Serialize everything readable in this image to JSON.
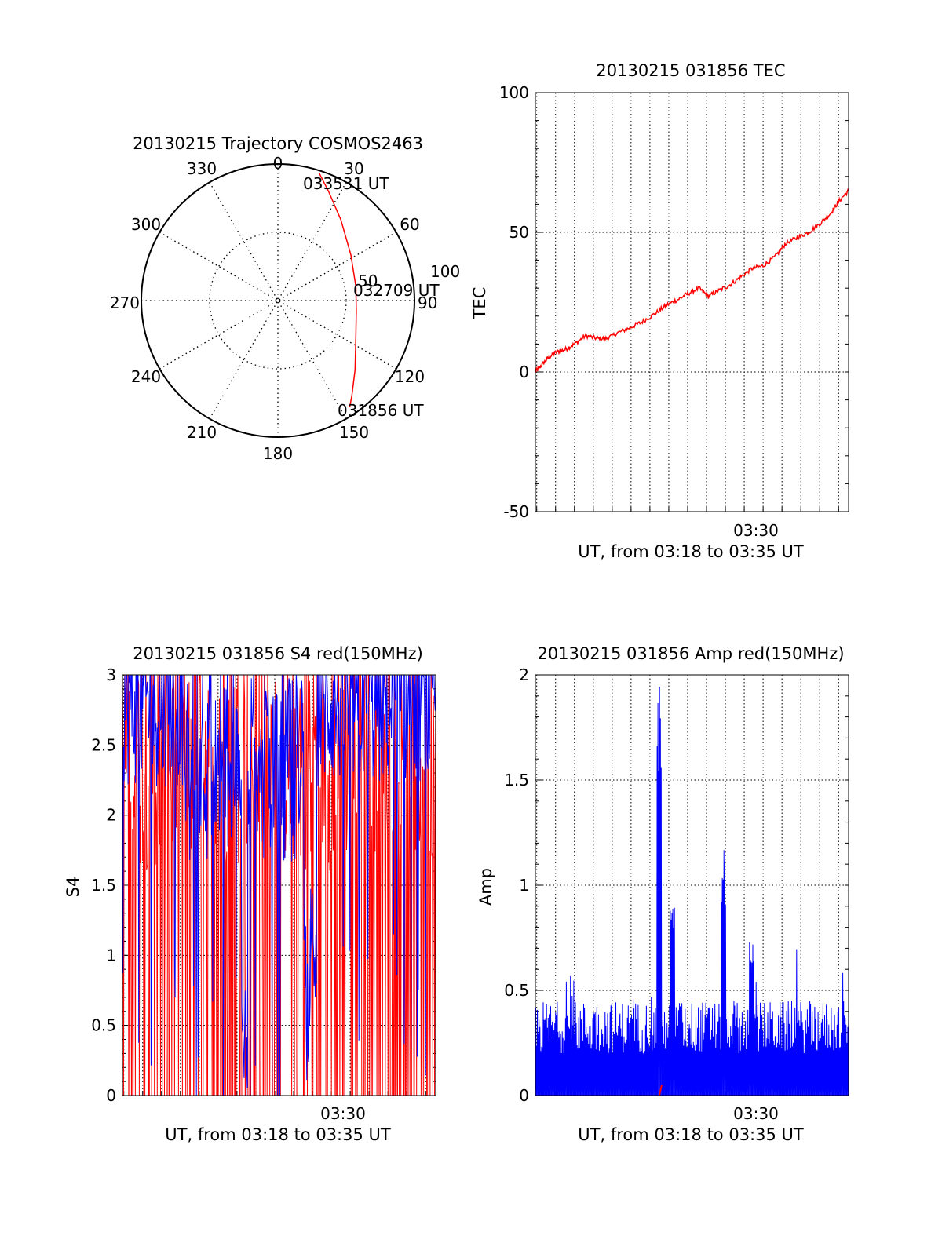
{
  "figure": {
    "background": "#ffffff",
    "trace_color_red": "#ff0000",
    "trace_color_blue": "#0000ff"
  },
  "chart_data": [
    {
      "id": "trajectory",
      "type": "polar",
      "title": "20130215 Trajectory COSMOS2463",
      "azimuth_ticks": [
        "0",
        "30",
        "60",
        "90",
        "120",
        "150",
        "180",
        "210",
        "240",
        "270",
        "300",
        "330"
      ],
      "radial_ticks": [
        "50",
        "100"
      ],
      "track_labels": [
        "033531 UT",
        "032709 UT",
        "031856 UT"
      ],
      "track": {
        "color": "#ff0000",
        "points": [
          {
            "az": 18,
            "r": 98
          },
          {
            "az": 25,
            "r": 88
          },
          {
            "az": 38,
            "r": 75
          },
          {
            "az": 58,
            "r": 63
          },
          {
            "az": 80,
            "r": 58
          },
          {
            "az": 98,
            "r": 58
          },
          {
            "az": 115,
            "r": 63
          },
          {
            "az": 132,
            "r": 76
          },
          {
            "az": 142,
            "r": 88
          },
          {
            "az": 146,
            "r": 94
          }
        ]
      }
    },
    {
      "id": "tec",
      "type": "line",
      "title": "20130215 031856 TEC",
      "ylabel": "TEC",
      "xlabel": "UT, from 03:18 to 03:35 UT",
      "x_tick_label": "03:30",
      "y_ticks": [
        "100",
        "50",
        "0",
        "-50"
      ],
      "ylim": [
        -50,
        100
      ],
      "x_range_minutes": [
        18.93,
        35.53
      ],
      "series": [
        {
          "color": "#ff0000",
          "x": [
            18.93,
            19.2,
            19.6,
            20.0,
            20.5,
            21.0,
            21.6,
            22.2,
            22.7,
            23.3,
            24.0,
            24.6,
            25.3,
            25.9,
            26.5,
            27.0,
            27.6,
            28.1,
            28.6,
            29.2,
            29.8,
            30.4,
            31.0,
            31.6,
            32.2,
            32.8,
            33.4,
            34.0,
            34.6,
            35.0,
            35.53
          ],
          "y": [
            0,
            2,
            5,
            7,
            8,
            10,
            13,
            12,
            12,
            14,
            16,
            18,
            21,
            24,
            26,
            28,
            30,
            27,
            29,
            31,
            34,
            37,
            38,
            41,
            46,
            48,
            50,
            53,
            57,
            61,
            65
          ]
        }
      ]
    },
    {
      "id": "s4",
      "type": "line",
      "title": "20130215 031856 S4 red(150MHz)",
      "ylabel": "S4",
      "xlabel": "UT, from 03:18 to 03:35 UT",
      "x_tick_label": "03:30",
      "y_ticks": [
        "3",
        "2.5",
        "2",
        "1.5",
        "1",
        "0.5",
        "0"
      ],
      "ylim": [
        0,
        3
      ],
      "x_range_minutes": [
        18.93,
        35.53
      ],
      "series": [
        {
          "color": "#ff0000",
          "description_level": "spiky, frequently dropping to 0, clipped at 3"
        },
        {
          "color": "#0000ff",
          "description_level": "mostly between 1.5 and 3, dips near 0.5"
        }
      ]
    },
    {
      "id": "amp",
      "type": "line",
      "title": "20130215 031856 Amp red(150MHz)",
      "ylabel": "Amp",
      "xlabel": "UT, from 03:18 to 03:35 UT",
      "x_tick_label": "03:30",
      "y_ticks": [
        "2",
        "1.5",
        "1",
        "0.5",
        "0"
      ],
      "ylim": [
        0,
        2
      ],
      "x_range_minutes": [
        18.93,
        35.53
      ],
      "series": [
        {
          "color": "#0000ff",
          "baseline_range": [
            0.2,
            0.45
          ],
          "peaks": [
            {
              "x": 25.5,
              "y": 1.95
            },
            {
              "x": 26.2,
              "y": 0.9
            },
            {
              "x": 28.9,
              "y": 1.2
            },
            {
              "x": 30.4,
              "y": 0.78
            }
          ]
        },
        {
          "color": "#ff0000",
          "peaks": [
            {
              "x": 25.5,
              "y": 0.05
            }
          ]
        }
      ]
    }
  ]
}
